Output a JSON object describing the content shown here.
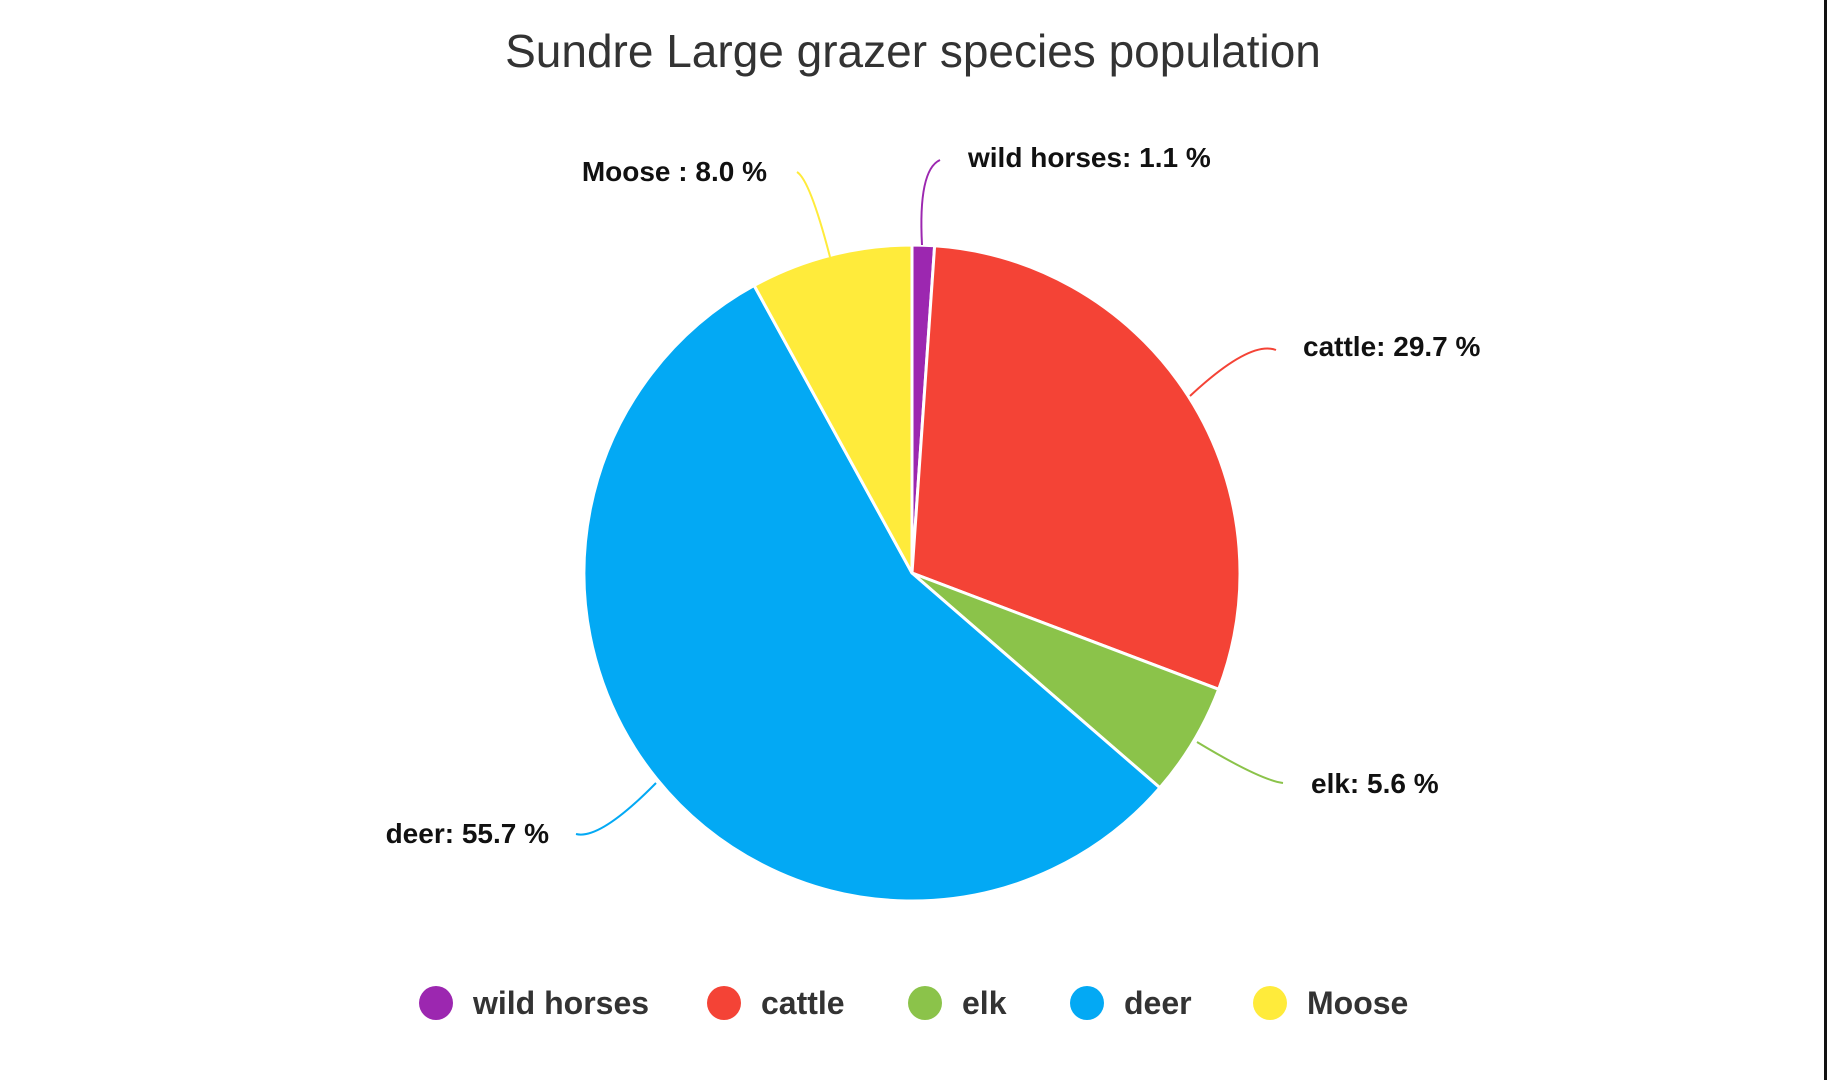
{
  "chart_data": {
    "type": "pie",
    "title": "Sundre Large grazer species population",
    "slices": [
      {
        "label": "wild horses",
        "value": 1.1,
        "display": "wild horses: 1.1 %",
        "color": "#9C27B0"
      },
      {
        "label": "cattle",
        "value": 29.7,
        "display": "cattle: 29.7 %",
        "color": "#F44336"
      },
      {
        "label": "elk",
        "value": 5.6,
        "display": "elk: 5.6 %",
        "color": "#8BC34A"
      },
      {
        "label": "deer",
        "value": 55.7,
        "display": "deer: 55.7 %",
        "color": "#03A9F4"
      },
      {
        "label": "Moose",
        "value": 8.0,
        "display": "Moose : 8.0 %",
        "color": "#FFEB3B"
      }
    ],
    "start_angle_deg": 0,
    "direction": "clockwise",
    "legend_position": "bottom"
  },
  "colors": {
    "title": "#333333",
    "label": "#111111",
    "legend_text": "#333333",
    "slice_border": "#ffffff"
  }
}
